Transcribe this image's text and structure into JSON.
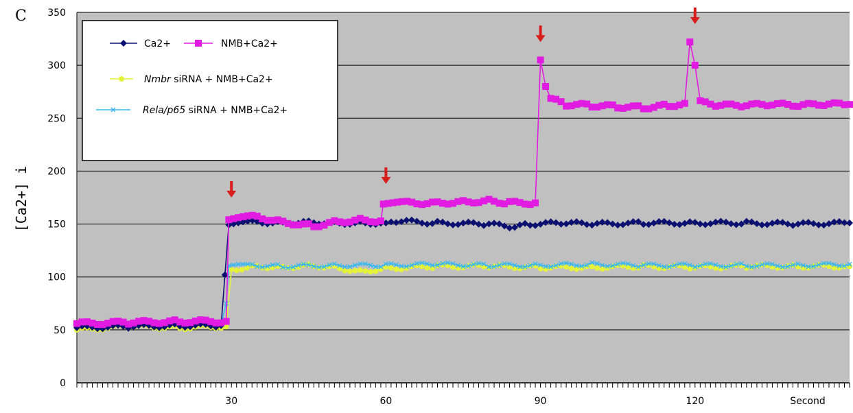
{
  "chart_data": {
    "type": "line",
    "panel_label": "C",
    "ylabel": "[Ca2+] i",
    "xlabel": "",
    "x_unit_label": "Second",
    "ylim": [
      0,
      350
    ],
    "xlim": [
      0,
      150
    ],
    "yticks": [
      "0",
      "50",
      "100",
      "150",
      "200",
      "250",
      "300",
      "350"
    ],
    "xticks": [
      {
        "value": 30,
        "label": "30"
      },
      {
        "value": 60,
        "label": "60"
      },
      {
        "value": 90,
        "label": "90"
      },
      {
        "value": 120,
        "label": "120"
      }
    ],
    "grid": "horizontal",
    "background": "#c0c0c0",
    "legend": {
      "placement": "top-left",
      "entries": [
        {
          "series": 0,
          "text": "Ca2+"
        },
        {
          "series": 1,
          "text": "NMB+Ca2+"
        },
        {
          "series": 2,
          "italic": "Nmbr",
          "text": " siRNA + NMB+Ca2+"
        },
        {
          "series": 3,
          "italic": "Rela/p65",
          "text": " siRNA  + NMB+Ca2+"
        }
      ]
    },
    "series": [
      {
        "name": "Ca2+",
        "color": "#0b1170",
        "marker": "diamond",
        "points": [
          [
            0,
            52
          ],
          [
            10,
            53
          ],
          [
            20,
            54
          ],
          [
            28,
            54
          ],
          [
            29.5,
            150
          ],
          [
            35,
            152
          ],
          [
            40,
            151
          ],
          [
            45,
            152
          ],
          [
            50,
            151
          ],
          [
            55,
            151
          ],
          [
            60,
            151
          ],
          [
            62,
            153
          ],
          [
            70,
            151
          ],
          [
            80,
            150
          ],
          [
            85,
            147
          ],
          [
            88,
            150
          ],
          [
            95,
            151
          ],
          [
            100,
            150
          ],
          [
            110,
            151
          ],
          [
            120,
            151
          ],
          [
            130,
            151
          ],
          [
            140,
            150
          ],
          [
            150,
            151
          ]
        ]
      },
      {
        "name": "NMB+Ca2+",
        "color": "#e21be2",
        "marker": "square",
        "points": [
          [
            0,
            56
          ],
          [
            10,
            57
          ],
          [
            20,
            58
          ],
          [
            29,
            58
          ],
          [
            29.5,
            155
          ],
          [
            35,
            157
          ],
          [
            40,
            152
          ],
          [
            46,
            148
          ],
          [
            50,
            152
          ],
          [
            55,
            154
          ],
          [
            59,
            153
          ],
          [
            59.5,
            170
          ],
          [
            65,
            170
          ],
          [
            70,
            170
          ],
          [
            75,
            171
          ],
          [
            80,
            172
          ],
          [
            84,
            170
          ],
          [
            89,
            170
          ],
          [
            90,
            305
          ],
          [
            91,
            280
          ],
          [
            92,
            268
          ],
          [
            95,
            263
          ],
          [
            100,
            262
          ],
          [
            105,
            261
          ],
          [
            110,
            260
          ],
          [
            115,
            262
          ],
          [
            118,
            264
          ],
          [
            119,
            322
          ],
          [
            120,
            300
          ],
          [
            121,
            265
          ],
          [
            125,
            262
          ],
          [
            130,
            262
          ],
          [
            135,
            263
          ],
          [
            140,
            262
          ],
          [
            145,
            263
          ],
          [
            150,
            263
          ]
        ]
      },
      {
        "name": "Nmbr siRNA + NMB+Ca2+",
        "color": "#e4f23a",
        "marker": "star",
        "points": [
          [
            0,
            50
          ],
          [
            10,
            53
          ],
          [
            20,
            52
          ],
          [
            29,
            53
          ],
          [
            30,
            107
          ],
          [
            35,
            110
          ],
          [
            40,
            109
          ],
          [
            45,
            111
          ],
          [
            50,
            109
          ],
          [
            55,
            105
          ],
          [
            60,
            108
          ],
          [
            70,
            110
          ],
          [
            80,
            110
          ],
          [
            90,
            109
          ],
          [
            100,
            109
          ],
          [
            110,
            110
          ],
          [
            120,
            109
          ],
          [
            130,
            110
          ],
          [
            140,
            110
          ],
          [
            150,
            110
          ]
        ]
      },
      {
        "name": "Rela/p65 siRNA + NMB+Ca2+",
        "color": "#39b7f0",
        "marker": "x",
        "points": [
          [
            0,
            54
          ],
          [
            10,
            55
          ],
          [
            20,
            55
          ],
          [
            28,
            55
          ],
          [
            29,
            75
          ],
          [
            29.5,
            110
          ],
          [
            35,
            111
          ],
          [
            40,
            110
          ],
          [
            50,
            111
          ],
          [
            60,
            111
          ],
          [
            70,
            112
          ],
          [
            80,
            111
          ],
          [
            90,
            111
          ],
          [
            100,
            112
          ],
          [
            110,
            111
          ],
          [
            120,
            111
          ],
          [
            130,
            111
          ],
          [
            140,
            111
          ],
          [
            150,
            112
          ]
        ]
      }
    ],
    "annotations": [
      {
        "type": "arrow",
        "x": 30,
        "y": 175,
        "color": "#d81d1d"
      },
      {
        "type": "arrow",
        "x": 60,
        "y": 188,
        "color": "#d81d1d"
      },
      {
        "type": "arrow",
        "x": 90,
        "y": 322,
        "color": "#d81d1d"
      },
      {
        "type": "arrow",
        "x": 120,
        "y": 339,
        "color": "#d81d1d"
      }
    ]
  }
}
